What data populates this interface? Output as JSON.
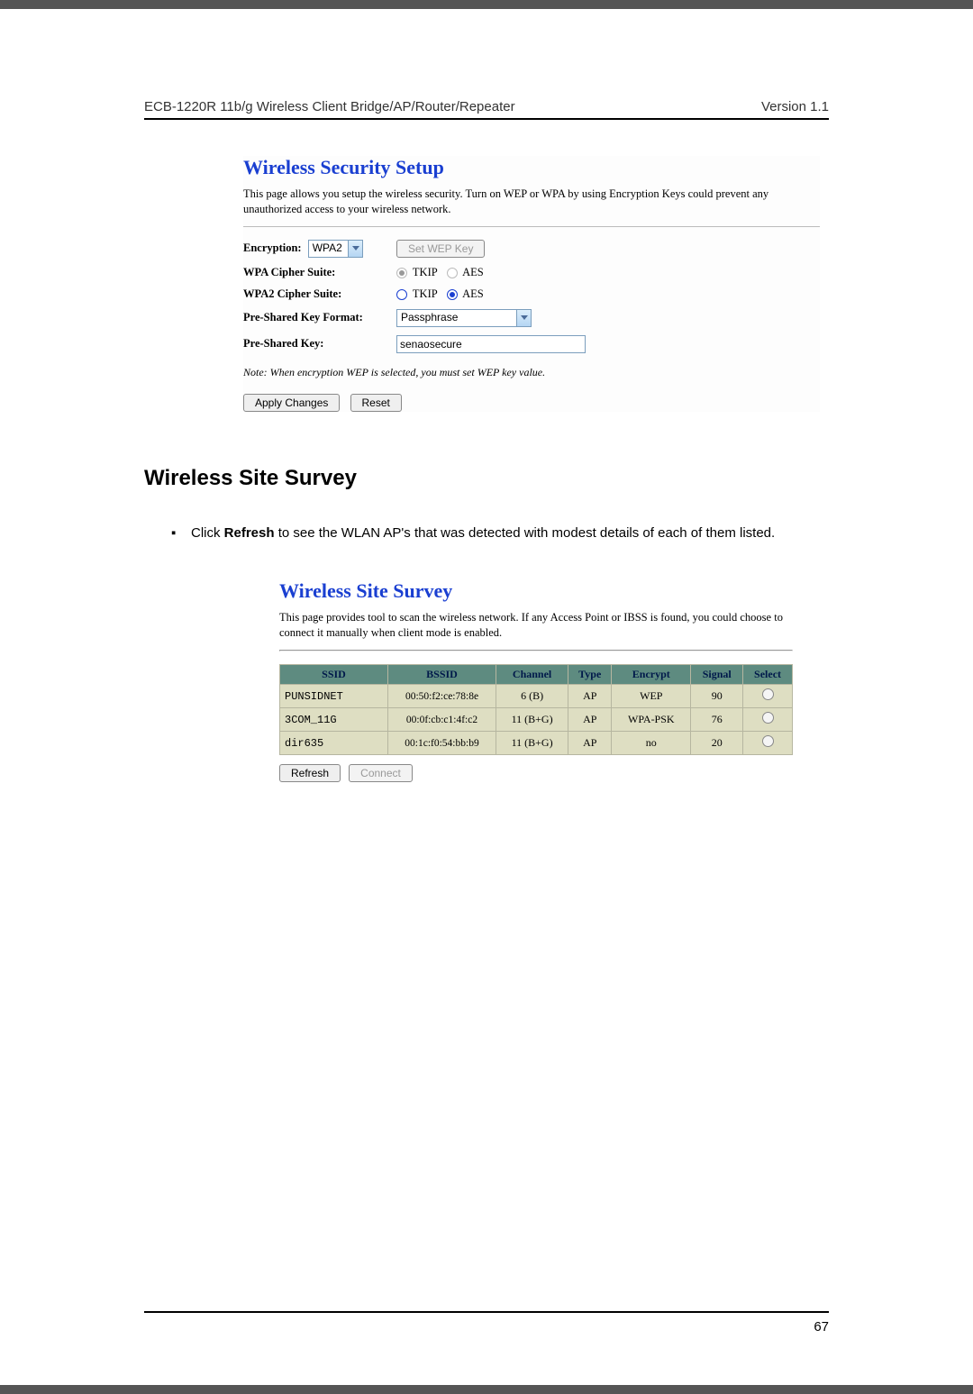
{
  "header": {
    "left": "ECB-1220R 11b/g Wireless Client Bridge/AP/Router/Repeater",
    "right": "Version 1.1"
  },
  "security": {
    "title": "Wireless Security Setup",
    "desc": "This page allows you setup the wireless security. Turn on WEP or WPA by using Encryption Keys could prevent any unauthorized access to your wireless network.",
    "labels": {
      "encryption": "Encryption:",
      "wpa_suite": "WPA Cipher Suite:",
      "wpa2_suite": "WPA2 Cipher Suite:",
      "psk_format": "Pre-Shared Key Format:",
      "psk": "Pre-Shared Key:"
    },
    "values": {
      "encryption": "WPA2",
      "set_wep": "Set WEP Key",
      "tkip": "TKIP",
      "aes": "AES",
      "psk_format": "Passphrase",
      "psk": "senaosecure"
    },
    "note": "Note: When encryption WEP is selected, you must set WEP key value.",
    "buttons": {
      "apply": "Apply Changes",
      "reset": "Reset"
    },
    "radio_state": {
      "wpa_tkip": true,
      "wpa_aes": false,
      "wpa2_tkip": false,
      "wpa2_aes": true
    },
    "colors": {
      "heading": "#1a3fd1"
    }
  },
  "section": {
    "heading": "Wireless Site Survey",
    "bullet_prefix": "Click ",
    "bullet_bold": "Refresh",
    "bullet_rest": " to see the WLAN AP's that was detected with modest details of each of them listed."
  },
  "survey": {
    "title": "Wireless Site Survey",
    "desc": "This page provides tool to scan the wireless network. If any Access Point or IBSS is found, you could choose to connect it manually when client mode is enabled.",
    "columns": [
      "SSID",
      "BSSID",
      "Channel",
      "Type",
      "Encrypt",
      "Signal",
      "Select"
    ],
    "rows": [
      {
        "ssid": "PUNSIDNET",
        "bssid": "00:50:f2:ce:78:8e",
        "ch": "6 (B)",
        "type": "AP",
        "enc": "WEP",
        "sig": "90"
      },
      {
        "ssid": "3COM_11G",
        "bssid": "00:0f:cb:c1:4f:c2",
        "ch": "11 (B+G)",
        "type": "AP",
        "enc": "WPA-PSK",
        "sig": "76"
      },
      {
        "ssid": "dir635",
        "bssid": "00:1c:f0:54:bb:b9",
        "ch": "11 (B+G)",
        "type": "AP",
        "enc": "no",
        "sig": "20"
      }
    ],
    "buttons": {
      "refresh": "Refresh",
      "connect": "Connect"
    },
    "colors": {
      "th_bg": "#5e8b80",
      "td_bg": "#dedec2",
      "border": "#b6b6a0"
    }
  },
  "page_number": "67"
}
